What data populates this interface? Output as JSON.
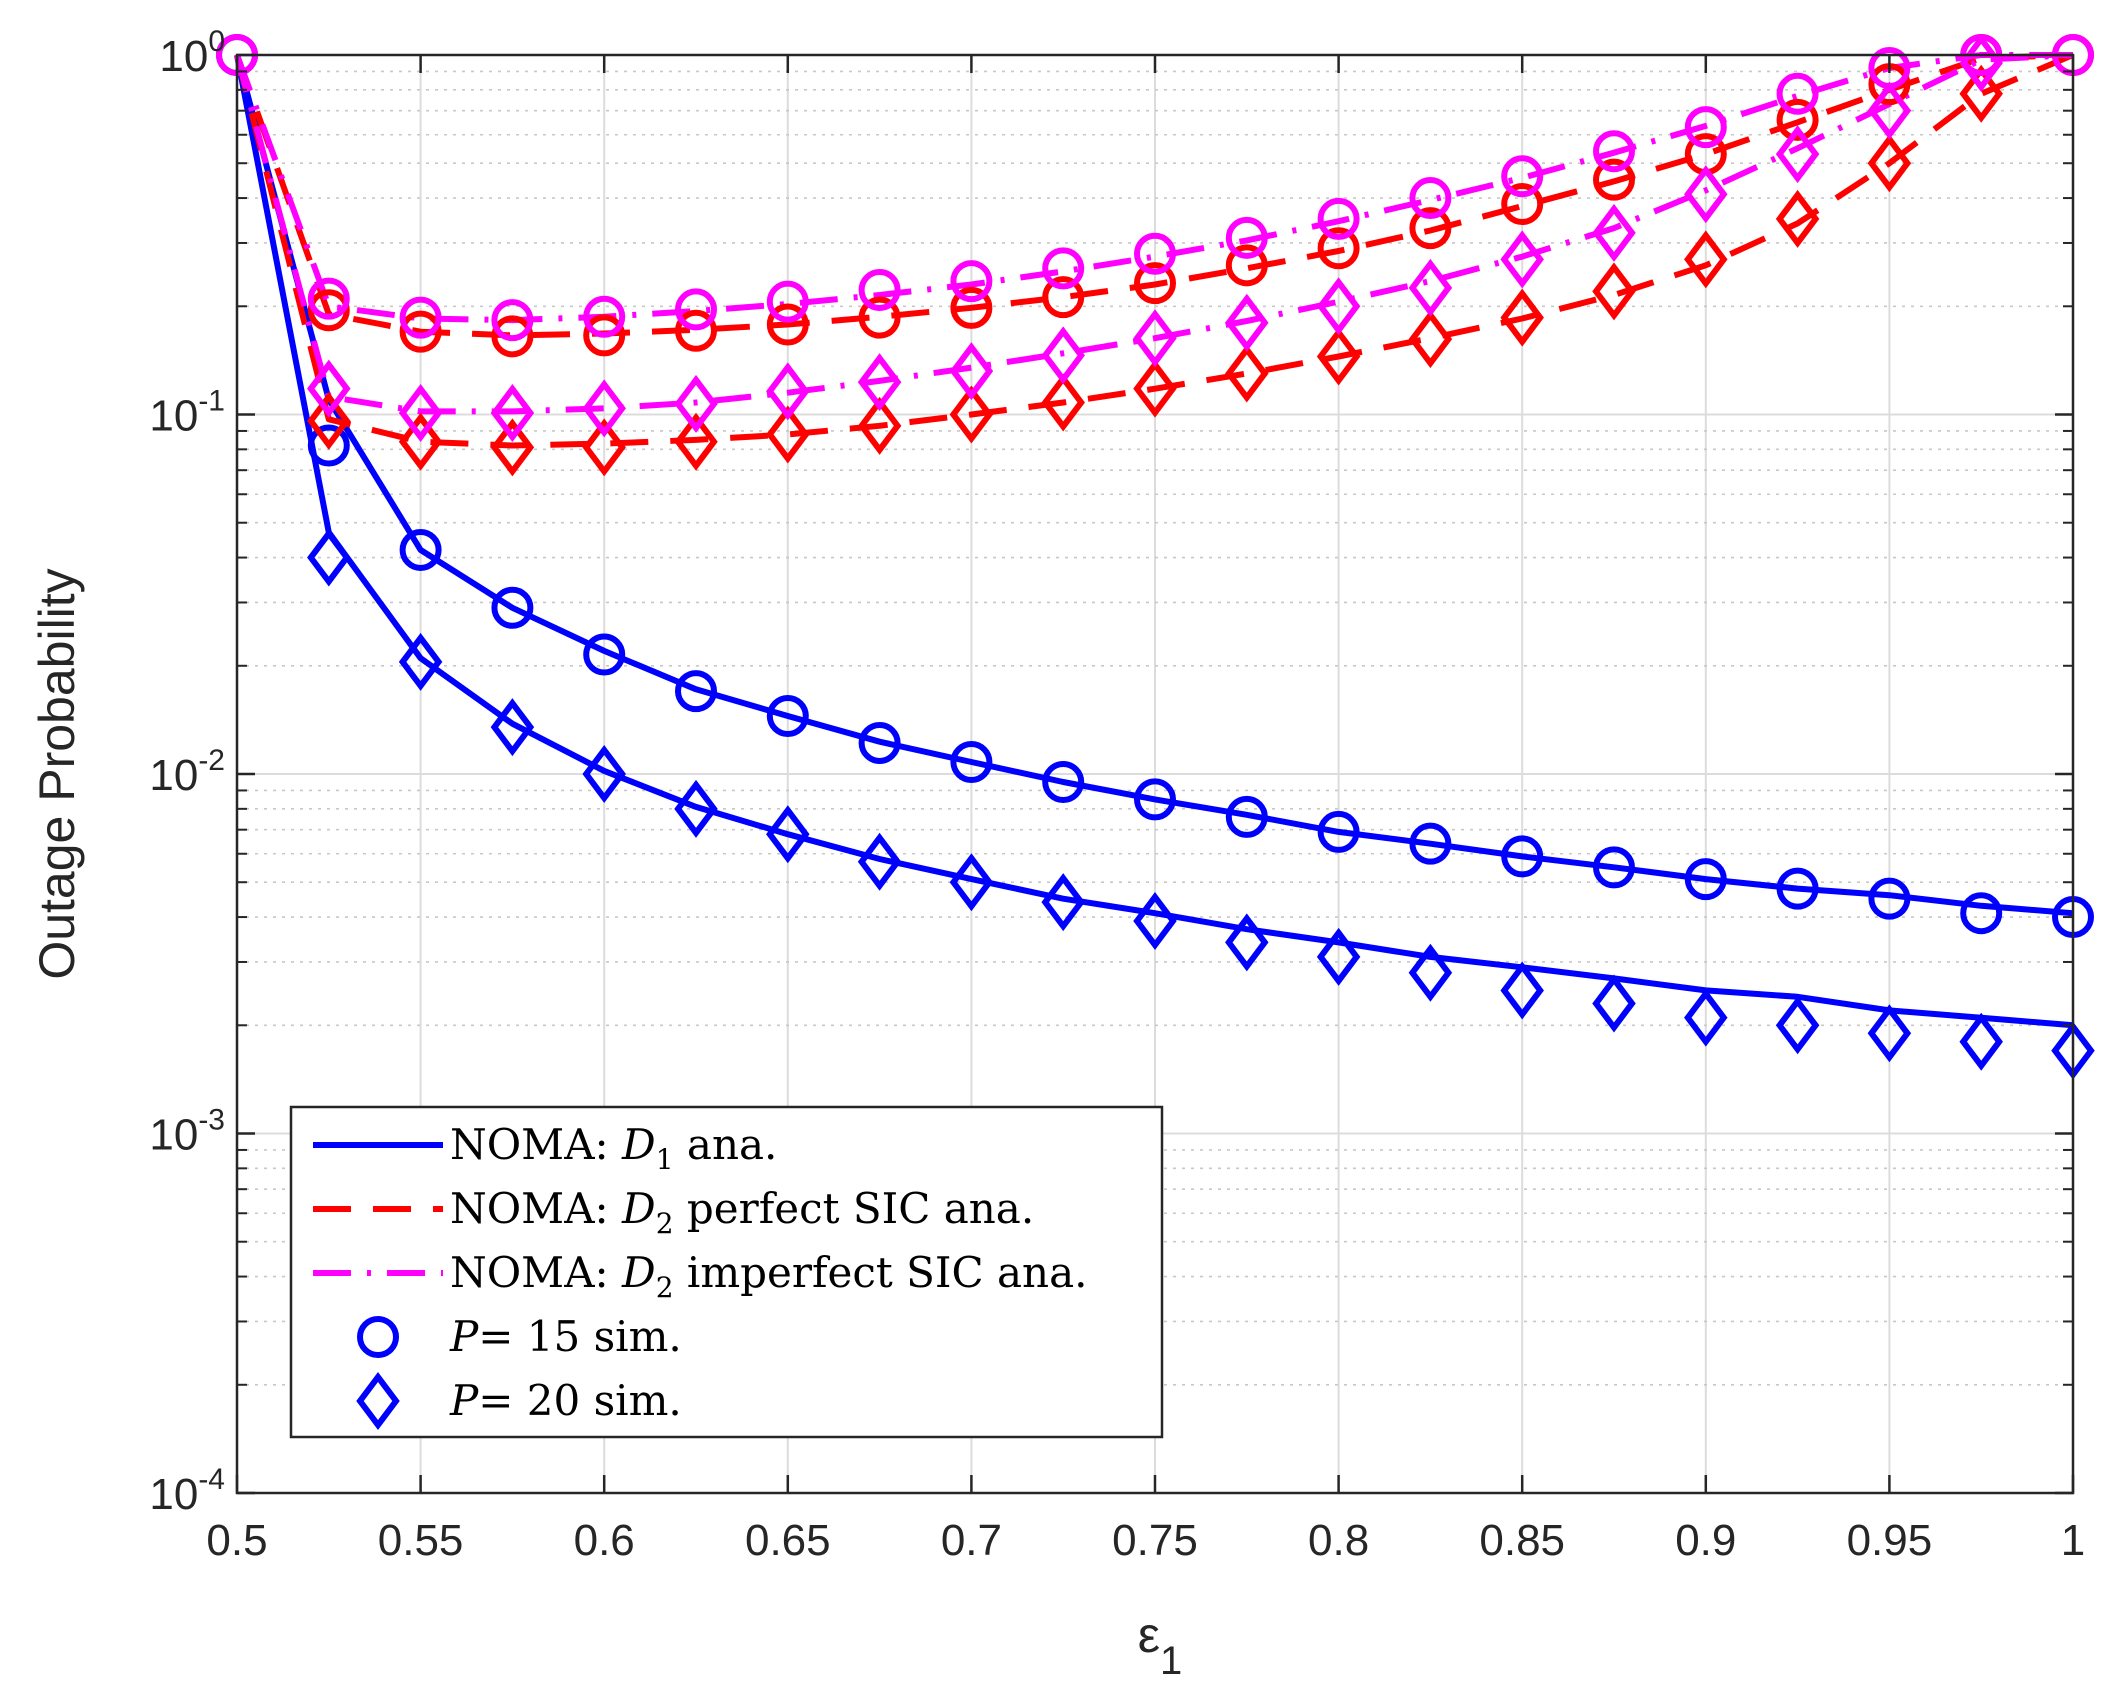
{
  "chart_data": {
    "type": "line",
    "ylabel": "Outage Probability",
    "xlabel": "ε",
    "xlabel_subscript": "1",
    "xlim": [
      0.5,
      1
    ],
    "ylim": [
      0.0001,
      1
    ],
    "yscale": "log",
    "grid": true,
    "minor_grid": true,
    "legend_position": "bottom-left",
    "x_ticks": [
      {
        "value": 0.5,
        "label": "0.5"
      },
      {
        "value": 0.55,
        "label": "0.55"
      },
      {
        "value": 0.6,
        "label": "0.6"
      },
      {
        "value": 0.65,
        "label": "0.65"
      },
      {
        "value": 0.7,
        "label": "0.7"
      },
      {
        "value": 0.75,
        "label": "0.75"
      },
      {
        "value": 0.8,
        "label": "0.8"
      },
      {
        "value": 0.85,
        "label": "0.85"
      },
      {
        "value": 0.9,
        "label": "0.9"
      },
      {
        "value": 0.95,
        "label": "0.95"
      },
      {
        "value": 1,
        "label": "1"
      }
    ],
    "y_ticks": [
      {
        "value": 1,
        "base": "10",
        "exp": "0"
      },
      {
        "value": 0.1,
        "base": "10",
        "exp": "-1"
      },
      {
        "value": 0.01,
        "base": "10",
        "exp": "-2"
      },
      {
        "value": 0.001,
        "base": "10",
        "exp": "-3"
      },
      {
        "value": 0.0001,
        "base": "10",
        "exp": "-4"
      }
    ],
    "colors": {
      "blue": "#0000ff",
      "red": "#ff0000",
      "magenta": "#ff00ff",
      "axis": "#262626",
      "grid": "#dcdcdc"
    },
    "lines": [
      {
        "name": "D1 P=15",
        "color": "#0000ff",
        "dash": "solid",
        "x": [
          0.5,
          0.525,
          0.55,
          0.575,
          0.6,
          0.625,
          0.65,
          0.675,
          0.7,
          0.725,
          0.75,
          0.775,
          0.8,
          0.825,
          0.85,
          0.875,
          0.9,
          0.925,
          0.95,
          0.975,
          1.0
        ],
        "y": [
          1.0,
          0.11,
          0.042,
          0.029,
          0.022,
          0.0172,
          0.0145,
          0.0123,
          0.0108,
          0.0095,
          0.0085,
          0.0077,
          0.0069,
          0.0064,
          0.0059,
          0.0055,
          0.0051,
          0.0048,
          0.0046,
          0.0043,
          0.0041
        ]
      },
      {
        "name": "D1 P=20",
        "color": "#0000ff",
        "dash": "solid",
        "x": [
          0.5,
          0.525,
          0.55,
          0.575,
          0.6,
          0.625,
          0.65,
          0.675,
          0.7,
          0.725,
          0.75,
          0.775,
          0.8,
          0.825,
          0.85,
          0.875,
          0.9,
          0.925,
          0.95,
          0.975,
          1.0
        ],
        "y": [
          1.0,
          0.047,
          0.021,
          0.0138,
          0.0102,
          0.0081,
          0.0068,
          0.0058,
          0.0051,
          0.0045,
          0.0041,
          0.0037,
          0.0034,
          0.0031,
          0.0029,
          0.0027,
          0.0025,
          0.0024,
          0.0022,
          0.0021,
          0.002
        ]
      },
      {
        "name": "D2 perfect SIC P=15",
        "color": "#ff0000",
        "dash": "dashed",
        "x": [
          0.5,
          0.525,
          0.55,
          0.575,
          0.6,
          0.625,
          0.65,
          0.675,
          0.7,
          0.725,
          0.75,
          0.775,
          0.8,
          0.825,
          0.85,
          0.875,
          0.9,
          0.925,
          0.95,
          0.975,
          1.0
        ],
        "y": [
          1.0,
          0.19,
          0.17,
          0.166,
          0.168,
          0.172,
          0.178,
          0.187,
          0.198,
          0.212,
          0.23,
          0.255,
          0.285,
          0.325,
          0.38,
          0.445,
          0.53,
          0.65,
          0.8,
          0.98,
          1.0
        ]
      },
      {
        "name": "D2 perfect SIC P=20",
        "color": "#ff0000",
        "dash": "dashed",
        "x": [
          0.5,
          0.525,
          0.55,
          0.575,
          0.6,
          0.625,
          0.65,
          0.675,
          0.7,
          0.725,
          0.75,
          0.775,
          0.8,
          0.825,
          0.85,
          0.875,
          0.9,
          0.925,
          0.95,
          0.975,
          1.0
        ],
        "y": [
          1.0,
          0.097,
          0.084,
          0.082,
          0.083,
          0.085,
          0.088,
          0.093,
          0.1,
          0.108,
          0.118,
          0.13,
          0.145,
          0.163,
          0.185,
          0.215,
          0.26,
          0.34,
          0.5,
          0.78,
          1.0
        ]
      },
      {
        "name": "D2 imperfect SIC P=15",
        "color": "#ff00ff",
        "dash": "dashdot",
        "x": [
          0.5,
          0.525,
          0.55,
          0.575,
          0.6,
          0.625,
          0.65,
          0.675,
          0.7,
          0.725,
          0.75,
          0.775,
          0.8,
          0.825,
          0.85,
          0.875,
          0.9,
          0.925,
          0.95,
          0.975,
          1.0
        ],
        "y": [
          1.0,
          0.2,
          0.185,
          0.183,
          0.187,
          0.194,
          0.203,
          0.215,
          0.23,
          0.25,
          0.275,
          0.305,
          0.345,
          0.395,
          0.455,
          0.535,
          0.635,
          0.77,
          0.92,
          1.0,
          1.0
        ]
      },
      {
        "name": "D2 imperfect SIC P=20",
        "color": "#ff00ff",
        "dash": "dashdot",
        "x": [
          0.5,
          0.525,
          0.55,
          0.575,
          0.6,
          0.625,
          0.65,
          0.675,
          0.7,
          0.725,
          0.75,
          0.775,
          0.8,
          0.825,
          0.85,
          0.875,
          0.9,
          0.925,
          0.95,
          0.975,
          1.0
        ],
        "y": [
          1.0,
          0.112,
          0.102,
          0.102,
          0.104,
          0.108,
          0.115,
          0.124,
          0.135,
          0.148,
          0.163,
          0.182,
          0.206,
          0.235,
          0.275,
          0.33,
          0.42,
          0.55,
          0.73,
          0.97,
          1.0
        ]
      }
    ],
    "markers": [
      {
        "shape": "circle",
        "color": "#0000ff",
        "x": [
          0.5,
          0.525,
          0.55,
          0.575,
          0.6,
          0.625,
          0.65,
          0.675,
          0.7,
          0.725,
          0.75,
          0.775,
          0.8,
          0.825,
          0.85,
          0.875,
          0.9,
          0.925,
          0.95,
          0.975,
          1.0
        ],
        "y": [
          1.0,
          0.082,
          0.042,
          0.029,
          0.0215,
          0.017,
          0.0145,
          0.0122,
          0.0108,
          0.0095,
          0.0085,
          0.0076,
          0.0069,
          0.0064,
          0.0059,
          0.0055,
          0.0051,
          0.0048,
          0.0045,
          0.0041,
          0.004
        ]
      },
      {
        "shape": "diamond",
        "color": "#0000ff",
        "x": [
          0.525,
          0.55,
          0.575,
          0.6,
          0.625,
          0.65,
          0.675,
          0.7,
          0.725,
          0.75,
          0.775,
          0.8,
          0.825,
          0.85,
          0.875,
          0.9,
          0.925,
          0.95,
          0.975,
          1.0
        ],
        "y": [
          0.04,
          0.0205,
          0.0135,
          0.01,
          0.008,
          0.0068,
          0.0057,
          0.005,
          0.0044,
          0.0039,
          0.0034,
          0.0031,
          0.0028,
          0.0025,
          0.0023,
          0.0021,
          0.002,
          0.0019,
          0.0018,
          0.0017
        ]
      },
      {
        "shape": "circle",
        "color": "#ff0000",
        "x": [
          0.525,
          0.55,
          0.575,
          0.6,
          0.625,
          0.65,
          0.675,
          0.7,
          0.725,
          0.75,
          0.775,
          0.8,
          0.825,
          0.85,
          0.875,
          0.9,
          0.925,
          0.95,
          0.975,
          1.0
        ],
        "y": [
          0.195,
          0.17,
          0.165,
          0.166,
          0.171,
          0.178,
          0.186,
          0.198,
          0.212,
          0.232,
          0.26,
          0.29,
          0.33,
          0.385,
          0.45,
          0.53,
          0.66,
          0.83,
          1.0,
          1.0
        ]
      },
      {
        "shape": "diamond",
        "color": "#ff0000",
        "x": [
          0.525,
          0.55,
          0.575,
          0.6,
          0.625,
          0.65,
          0.675,
          0.7,
          0.725,
          0.75,
          0.775,
          0.8,
          0.825,
          0.85,
          0.875,
          0.9,
          0.925,
          0.95,
          0.975
        ],
        "y": [
          0.096,
          0.084,
          0.081,
          0.081,
          0.084,
          0.088,
          0.093,
          0.1,
          0.108,
          0.118,
          0.13,
          0.145,
          0.162,
          0.186,
          0.22,
          0.27,
          0.35,
          0.5,
          0.78
        ]
      },
      {
        "shape": "circle",
        "color": "#ff00ff",
        "x": [
          0.5,
          0.525,
          0.55,
          0.575,
          0.6,
          0.625,
          0.65,
          0.675,
          0.7,
          0.725,
          0.75,
          0.775,
          0.8,
          0.825,
          0.85,
          0.875,
          0.9,
          0.925,
          0.95,
          0.975,
          1.0
        ],
        "y": [
          1.0,
          0.21,
          0.186,
          0.183,
          0.187,
          0.196,
          0.206,
          0.222,
          0.235,
          0.255,
          0.28,
          0.31,
          0.35,
          0.4,
          0.46,
          0.54,
          0.63,
          0.78,
          0.92,
          1.0,
          1.0
        ]
      },
      {
        "shape": "diamond",
        "color": "#ff00ff",
        "x": [
          0.525,
          0.55,
          0.575,
          0.6,
          0.625,
          0.65,
          0.675,
          0.7,
          0.725,
          0.75,
          0.775,
          0.8,
          0.825,
          0.85,
          0.875,
          0.9,
          0.925,
          0.95,
          0.975
        ],
        "y": [
          0.118,
          0.101,
          0.101,
          0.104,
          0.107,
          0.116,
          0.123,
          0.132,
          0.146,
          0.163,
          0.18,
          0.2,
          0.225,
          0.27,
          0.32,
          0.41,
          0.53,
          0.7,
          0.95
        ]
      }
    ],
    "legend": [
      {
        "kind": "line",
        "color": "#0000ff",
        "dash": "solid",
        "prefix": "NOMA: ",
        "var": "D",
        "sub": "1",
        "suffix": " ana."
      },
      {
        "kind": "line",
        "color": "#ff0000",
        "dash": "dashed",
        "prefix": "NOMA: ",
        "var": "D",
        "sub": "2",
        "suffix": " perfect SIC ana."
      },
      {
        "kind": "line",
        "color": "#ff00ff",
        "dash": "dashdot",
        "prefix": "NOMA: ",
        "var": "D",
        "sub": "2",
        "suffix": " imperfect SIC ana."
      },
      {
        "kind": "circle",
        "color": "#0000ff",
        "prefix": "",
        "var": "P",
        "sub": "",
        "suffix": "= 15 sim."
      },
      {
        "kind": "diamond",
        "color": "#0000ff",
        "prefix": "",
        "var": "P",
        "sub": "",
        "suffix": "= 20 sim."
      }
    ]
  }
}
